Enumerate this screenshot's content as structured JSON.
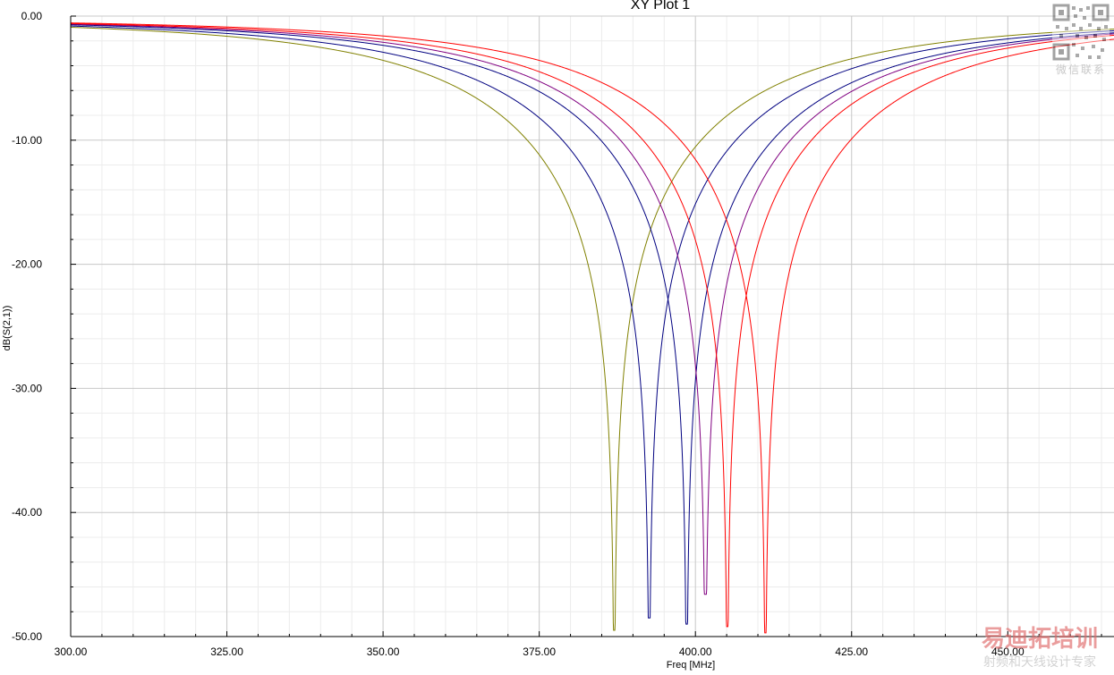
{
  "chart_data": {
    "type": "line",
    "title": "XY Plot 1",
    "xlabel": "Freq [MHz]",
    "ylabel": "dB(S(2,1))",
    "xlim": [
      300,
      467
    ],
    "ylim": [
      -50,
      0
    ],
    "x_ticks": [
      300,
      325,
      350,
      375,
      400,
      425,
      450
    ],
    "x_tick_labels": [
      "300.00",
      "325.00",
      "350.00",
      "375.00",
      "400.00",
      "425.00",
      "450.00"
    ],
    "y_ticks": [
      0,
      -10,
      -20,
      -30,
      -40,
      -50
    ],
    "y_tick_labels": [
      "0.00",
      "-10.00",
      "-20.00",
      "-30.00",
      "-40.00",
      "-50.00"
    ],
    "grid": true,
    "legend": "none",
    "series": [
      {
        "color": "#808000",
        "notch_freq": 387.0,
        "notch_depth": -49.5,
        "start_value": -0.9,
        "end_value": -1.4
      },
      {
        "color": "#000080",
        "notch_freq": 392.6,
        "notch_depth": -48.5,
        "start_value": -0.8,
        "end_value": -1.6
      },
      {
        "color": "#000080",
        "notch_freq": 398.6,
        "notch_depth": -49.0,
        "start_value": -0.7,
        "end_value": -1.8
      },
      {
        "color": "#800080",
        "notch_freq": 401.6,
        "notch_depth": -46.6,
        "start_value": -0.65,
        "end_value": -2.0
      },
      {
        "color": "#ff0000",
        "notch_freq": 405.1,
        "notch_depth": -49.2,
        "start_value": -0.6,
        "end_value": -2.3
      },
      {
        "color": "#ff0000",
        "notch_freq": 411.2,
        "notch_depth": -49.7,
        "start_value": -0.55,
        "end_value": -2.7
      }
    ]
  },
  "watermark": {
    "wechat_text": "微信联系",
    "brand_text": "易迪拓培训",
    "tagline_text": "射频和天线设计专家"
  }
}
